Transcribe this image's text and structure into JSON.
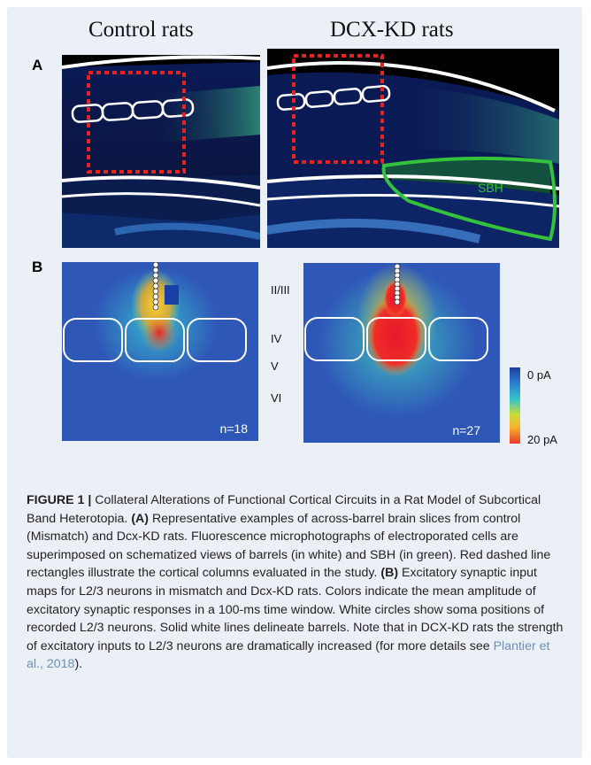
{
  "columns": {
    "control_title": "Control rats",
    "dcx_title": "DCX-KD rats"
  },
  "panel_a": {
    "letter": "A",
    "sbh_label": "SBH"
  },
  "panel_b": {
    "letter": "B",
    "layers": [
      "II/III",
      "IV",
      "V",
      "VI"
    ],
    "control_n": "n=18",
    "dcx_n": "n=27",
    "colorbar_top": "0 pA",
    "colorbar_bottom": "20 pA"
  },
  "colors": {
    "barrel_outline": "#ffffff",
    "column_box": "#e8231d",
    "sbh": "#34c23c",
    "caption_link": "#6d8fb6"
  },
  "caption": {
    "figure_label": "FIGURE 1 |",
    "title": " Collateral Alterations of Functional Cortical Circuits in a Rat Model of Subcortical Band Heterotopia. ",
    "a_label": "(A)",
    "a_text": " Representative examples of across-barrel brain slices from control (Mismatch) and Dcx-KD rats. Fluorescence microphotographs of electroporated cells are superimposed on schematized views of barrels (in white) and SBH (in green). Red dashed line rectangles illustrate the cortical columns evaluated in the study. ",
    "b_label": "(B)",
    "b_text": " Excitatory synaptic input maps for L2/3 neurons in mismatch and Dcx-KD rats. Colors indicate the mean amplitude of excitatory synaptic responses in a 100-ms time window. White circles show soma positions of recorded L2/3 neurons. Solid white lines delineate barrels. Note that in DCX-KD rats the strength of excitatory inputs to L2/3 neurons are dramatically increased (for more details see ",
    "ref": "Plantier et al., 2018",
    "end": ")."
  }
}
